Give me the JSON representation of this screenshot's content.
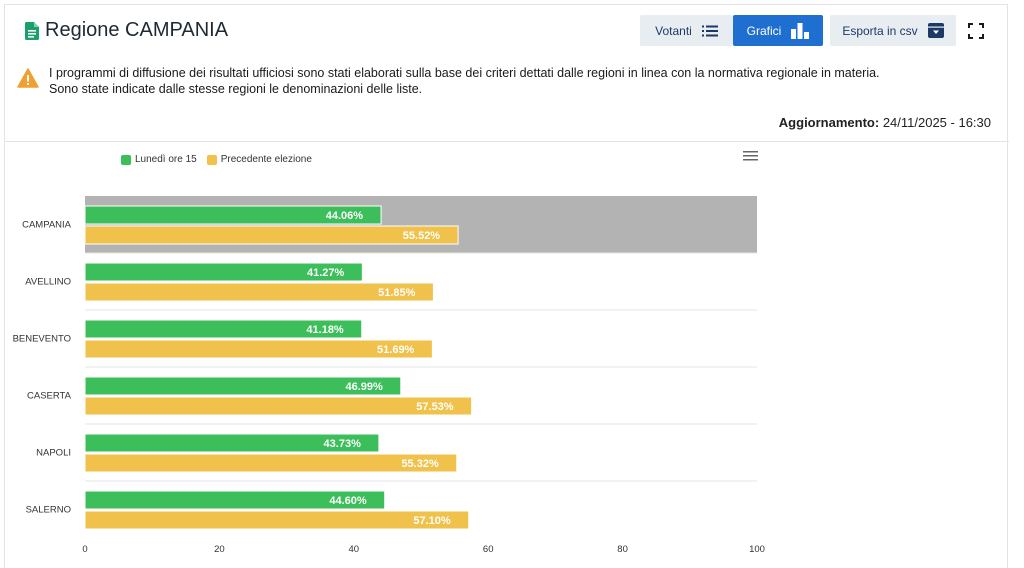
{
  "header": {
    "title": "Regione CAMPANIA",
    "buttons": {
      "votanti": "Votanti",
      "grafici": "Grafici",
      "csv": "Esporta in csv"
    }
  },
  "notice": {
    "line1": "I programmi di diffusione dei risultati ufficiosi sono stati elaborati sulla base dei criteri dettati dalle regioni in linea con la normativa regionale in materia.",
    "line2": "Sono state indicate dalle stesse regioni le denominazioni delle liste."
  },
  "update": {
    "label": "Aggiornamento:",
    "value": "24/11/2025 - 16:30"
  },
  "colors": {
    "current": "#3cbf5a",
    "previous": "#f0c14b",
    "highlight": "#b3b3b3",
    "accent": "#1f6fd1"
  },
  "chart_data": {
    "type": "bar",
    "orientation": "horizontal",
    "categories": [
      "CAMPANIA",
      "AVELLINO",
      "BENEVENTO",
      "CASERTA",
      "NAPOLI",
      "SALERNO"
    ],
    "highlighted_category": "CAMPANIA",
    "series": [
      {
        "name": "Lunedì ore 15",
        "values": [
          44.06,
          41.27,
          41.18,
          46.99,
          43.73,
          44.6
        ],
        "labels": [
          "44.06%",
          "41.27%",
          "41.18%",
          "46.99%",
          "43.73%",
          "44.60%"
        ]
      },
      {
        "name": "Precedente elezione",
        "values": [
          55.52,
          51.85,
          51.69,
          57.53,
          55.32,
          57.1
        ],
        "labels": [
          "55.52%",
          "51.85%",
          "51.69%",
          "57.53%",
          "55.32%",
          "57.10%"
        ]
      }
    ],
    "xlim": [
      0,
      100
    ],
    "xticks": [
      "0",
      "20",
      "40",
      "60",
      "80",
      "100"
    ],
    "legend_position": "top-left"
  }
}
